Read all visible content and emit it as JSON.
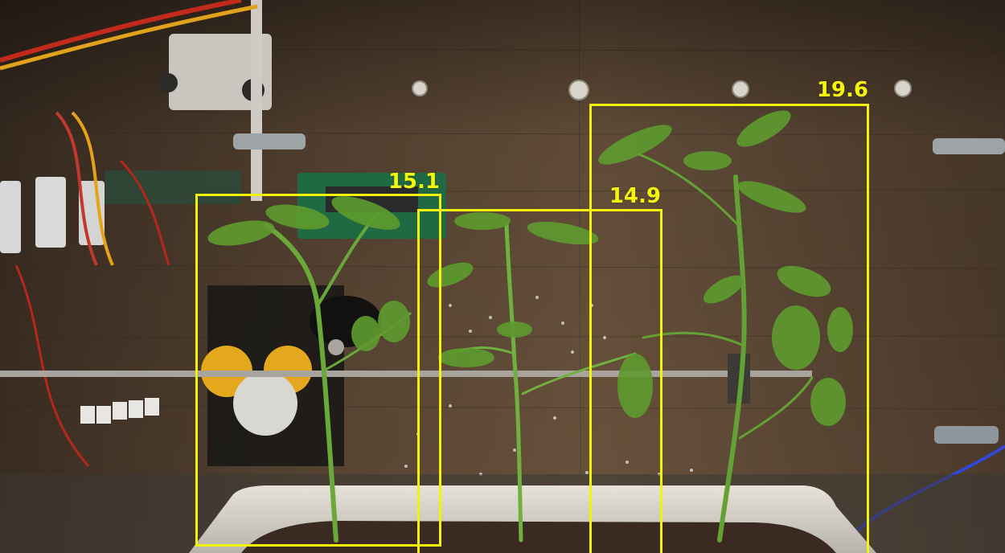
{
  "image": {
    "description_type": "plant detection overlay",
    "box_color": "#f2f20a"
  },
  "detections": [
    {
      "label": "15.1"
    },
    {
      "label": "14.9"
    },
    {
      "label": "19.6"
    }
  ]
}
